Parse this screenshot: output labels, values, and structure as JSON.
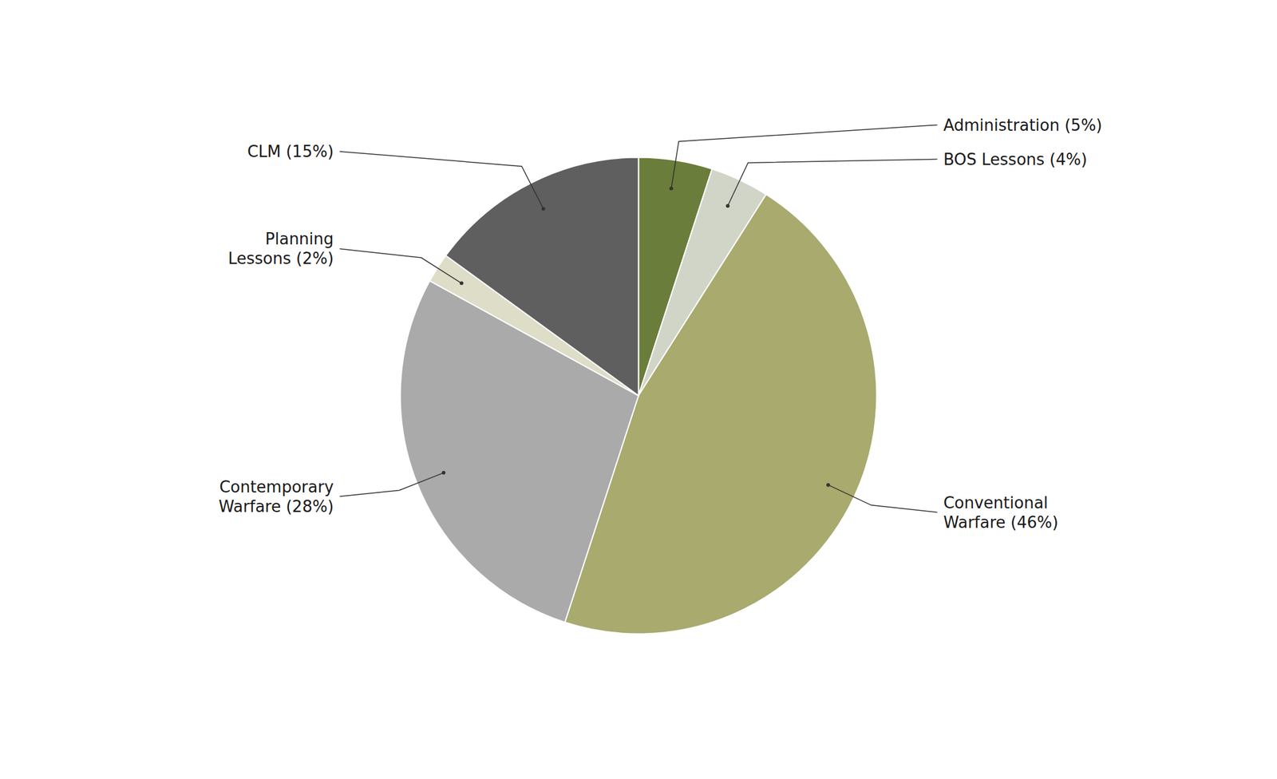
{
  "chart_data": {
    "type": "pie",
    "categories": [
      "Administration (5%)",
      "BOS Lessons (4%)",
      "Conventional\nWarfare (46%)",
      "Contemporary\nWarfare (28%)",
      "Planning\nLessons (2%)",
      "CLM (15%)"
    ],
    "values": [
      5,
      4,
      46,
      28,
      2,
      15
    ],
    "colors": [
      "#6b7d3a",
      "#d0d5c8",
      "#a8aa6e",
      "#aaaaaa",
      "#ddddc8",
      "#5f5f5f"
    ]
  }
}
